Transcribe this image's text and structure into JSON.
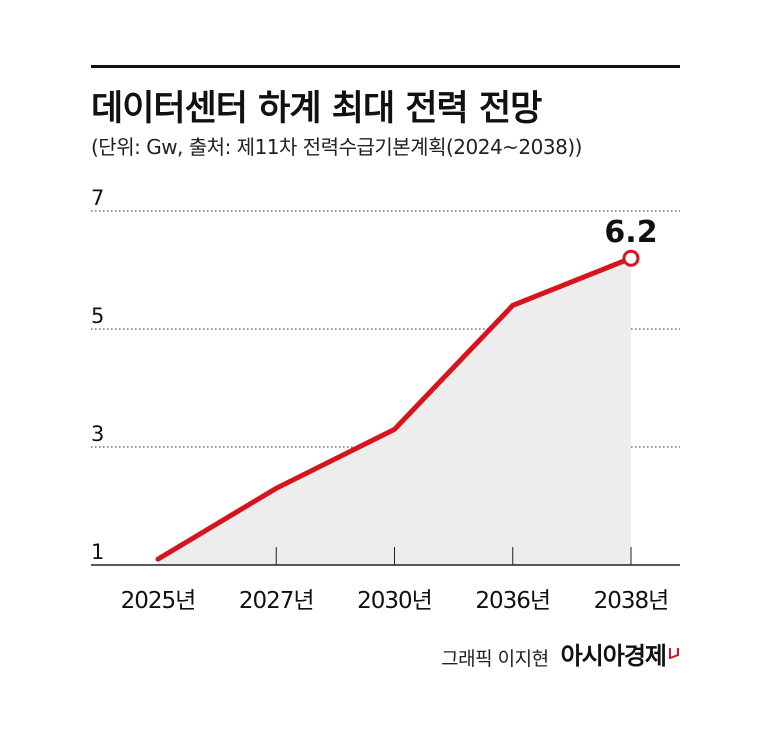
{
  "header": {
    "title": "데이터센터 하계 최대 전력 전망",
    "subtitle": "(단위: Gw, 출처: 제11차 전력수급기본계획(2024~2038))"
  },
  "footer": {
    "credit": "그래픽 이지현",
    "brand": "아시아경제"
  },
  "colors": {
    "line": "#d7141e",
    "area": "#ededed",
    "grid": "#555555",
    "axis": "#222222"
  },
  "chart_data": {
    "type": "line",
    "title": "데이터센터 하계 최대 전력 전망",
    "subtitle": "(단위: Gw, 출처: 제11차 전력수급기본계획(2024~2038))",
    "categories": [
      "2025년",
      "2027년",
      "2030년",
      "2036년",
      "2038년"
    ],
    "series": [
      {
        "values": [
          1.1,
          2.3,
          3.3,
          5.4,
          6.2
        ]
      }
    ],
    "yticks": [
      1,
      3,
      5,
      7
    ],
    "ylim": [
      1,
      7
    ],
    "grid": true,
    "grid_style": "dotted",
    "fill_under_line": true,
    "highlight_label": "6.2",
    "legend": "none"
  }
}
